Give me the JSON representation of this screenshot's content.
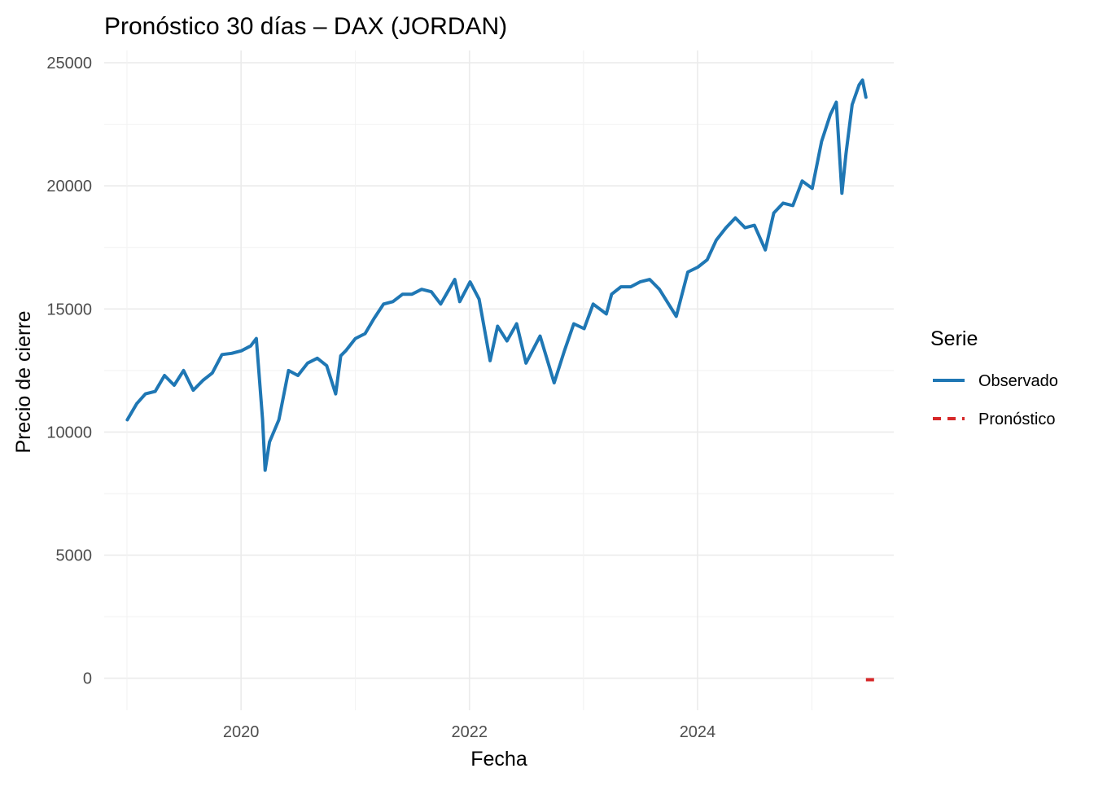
{
  "chart_data": {
    "type": "line",
    "title": "Pronóstico 30 días – DAX (JORDAN)",
    "xlabel": "Fecha",
    "ylabel": "Precio de cierre",
    "x_ticks": [
      "2020",
      "2022",
      "2024"
    ],
    "y_ticks": [
      "0",
      "5000",
      "10000",
      "15000",
      "20000",
      "25000"
    ],
    "xlim": [
      "2018-10-20",
      "2025-09-20"
    ],
    "ylim": [
      -1300,
      25500
    ],
    "grid": true,
    "legend": {
      "title": "Serie",
      "position": "right"
    },
    "series": [
      {
        "name": "Observado",
        "color": "#1f77b4",
        "style": "solid",
        "points": [
          [
            "2019-01-02",
            10500
          ],
          [
            "2019-02-01",
            11150
          ],
          [
            "2019-03-01",
            11550
          ],
          [
            "2019-04-01",
            11650
          ],
          [
            "2019-05-01",
            12300
          ],
          [
            "2019-06-01",
            11900
          ],
          [
            "2019-07-01",
            12500
          ],
          [
            "2019-08-01",
            11700
          ],
          [
            "2019-09-01",
            12100
          ],
          [
            "2019-10-01",
            12400
          ],
          [
            "2019-11-01",
            13150
          ],
          [
            "2019-12-02",
            13200
          ],
          [
            "2020-01-02",
            13300
          ],
          [
            "2020-02-01",
            13500
          ],
          [
            "2020-02-19",
            13800
          ],
          [
            "2020-03-10",
            10500
          ],
          [
            "2020-03-18",
            8450
          ],
          [
            "2020-04-01",
            9600
          ],
          [
            "2020-05-01",
            10500
          ],
          [
            "2020-06-01",
            12500
          ],
          [
            "2020-07-01",
            12300
          ],
          [
            "2020-08-01",
            12800
          ],
          [
            "2020-09-01",
            13000
          ],
          [
            "2020-10-01",
            12700
          ],
          [
            "2020-10-30",
            11550
          ],
          [
            "2020-11-15",
            13100
          ],
          [
            "2020-12-01",
            13300
          ],
          [
            "2021-01-01",
            13800
          ],
          [
            "2021-02-01",
            14000
          ],
          [
            "2021-03-01",
            14600
          ],
          [
            "2021-04-01",
            15200
          ],
          [
            "2021-05-01",
            15300
          ],
          [
            "2021-06-01",
            15600
          ],
          [
            "2021-07-01",
            15600
          ],
          [
            "2021-08-01",
            15800
          ],
          [
            "2021-09-01",
            15700
          ],
          [
            "2021-10-01",
            15200
          ],
          [
            "2021-11-15",
            16200
          ],
          [
            "2021-12-01",
            15300
          ],
          [
            "2022-01-03",
            16100
          ],
          [
            "2022-02-01",
            15400
          ],
          [
            "2022-03-08",
            12900
          ],
          [
            "2022-04-01",
            14300
          ],
          [
            "2022-05-01",
            13700
          ],
          [
            "2022-06-01",
            14400
          ],
          [
            "2022-07-01",
            12800
          ],
          [
            "2022-08-15",
            13900
          ],
          [
            "2022-09-29",
            12000
          ],
          [
            "2022-11-01",
            13300
          ],
          [
            "2022-12-01",
            14400
          ],
          [
            "2023-01-03",
            14200
          ],
          [
            "2023-02-01",
            15200
          ],
          [
            "2023-03-15",
            14800
          ],
          [
            "2023-04-01",
            15600
          ],
          [
            "2023-05-01",
            15900
          ],
          [
            "2023-06-01",
            15900
          ],
          [
            "2023-07-01",
            16100
          ],
          [
            "2023-08-01",
            16200
          ],
          [
            "2023-09-01",
            15800
          ],
          [
            "2023-10-25",
            14700
          ],
          [
            "2023-12-01",
            16500
          ],
          [
            "2024-01-02",
            16700
          ],
          [
            "2024-02-01",
            17000
          ],
          [
            "2024-03-01",
            17800
          ],
          [
            "2024-04-01",
            18300
          ],
          [
            "2024-05-01",
            18700
          ],
          [
            "2024-06-01",
            18300
          ],
          [
            "2024-07-01",
            18400
          ],
          [
            "2024-08-05",
            17400
          ],
          [
            "2024-09-01",
            18900
          ],
          [
            "2024-10-01",
            19300
          ],
          [
            "2024-11-01",
            19200
          ],
          [
            "2024-12-01",
            20200
          ],
          [
            "2025-01-02",
            19900
          ],
          [
            "2025-02-01",
            21800
          ],
          [
            "2025-03-01",
            22900
          ],
          [
            "2025-03-20",
            23400
          ],
          [
            "2025-04-07",
            19700
          ],
          [
            "2025-04-20",
            21300
          ],
          [
            "2025-05-10",
            23300
          ],
          [
            "2025-06-01",
            24100
          ],
          [
            "2025-06-12",
            24300
          ],
          [
            "2025-06-23",
            23600
          ]
        ]
      },
      {
        "name": "Pronóstico",
        "color": "#d62728",
        "style": "dashed",
        "points": [
          [
            "2025-06-23",
            -60
          ],
          [
            "2025-07-22",
            -60
          ]
        ]
      }
    ]
  }
}
